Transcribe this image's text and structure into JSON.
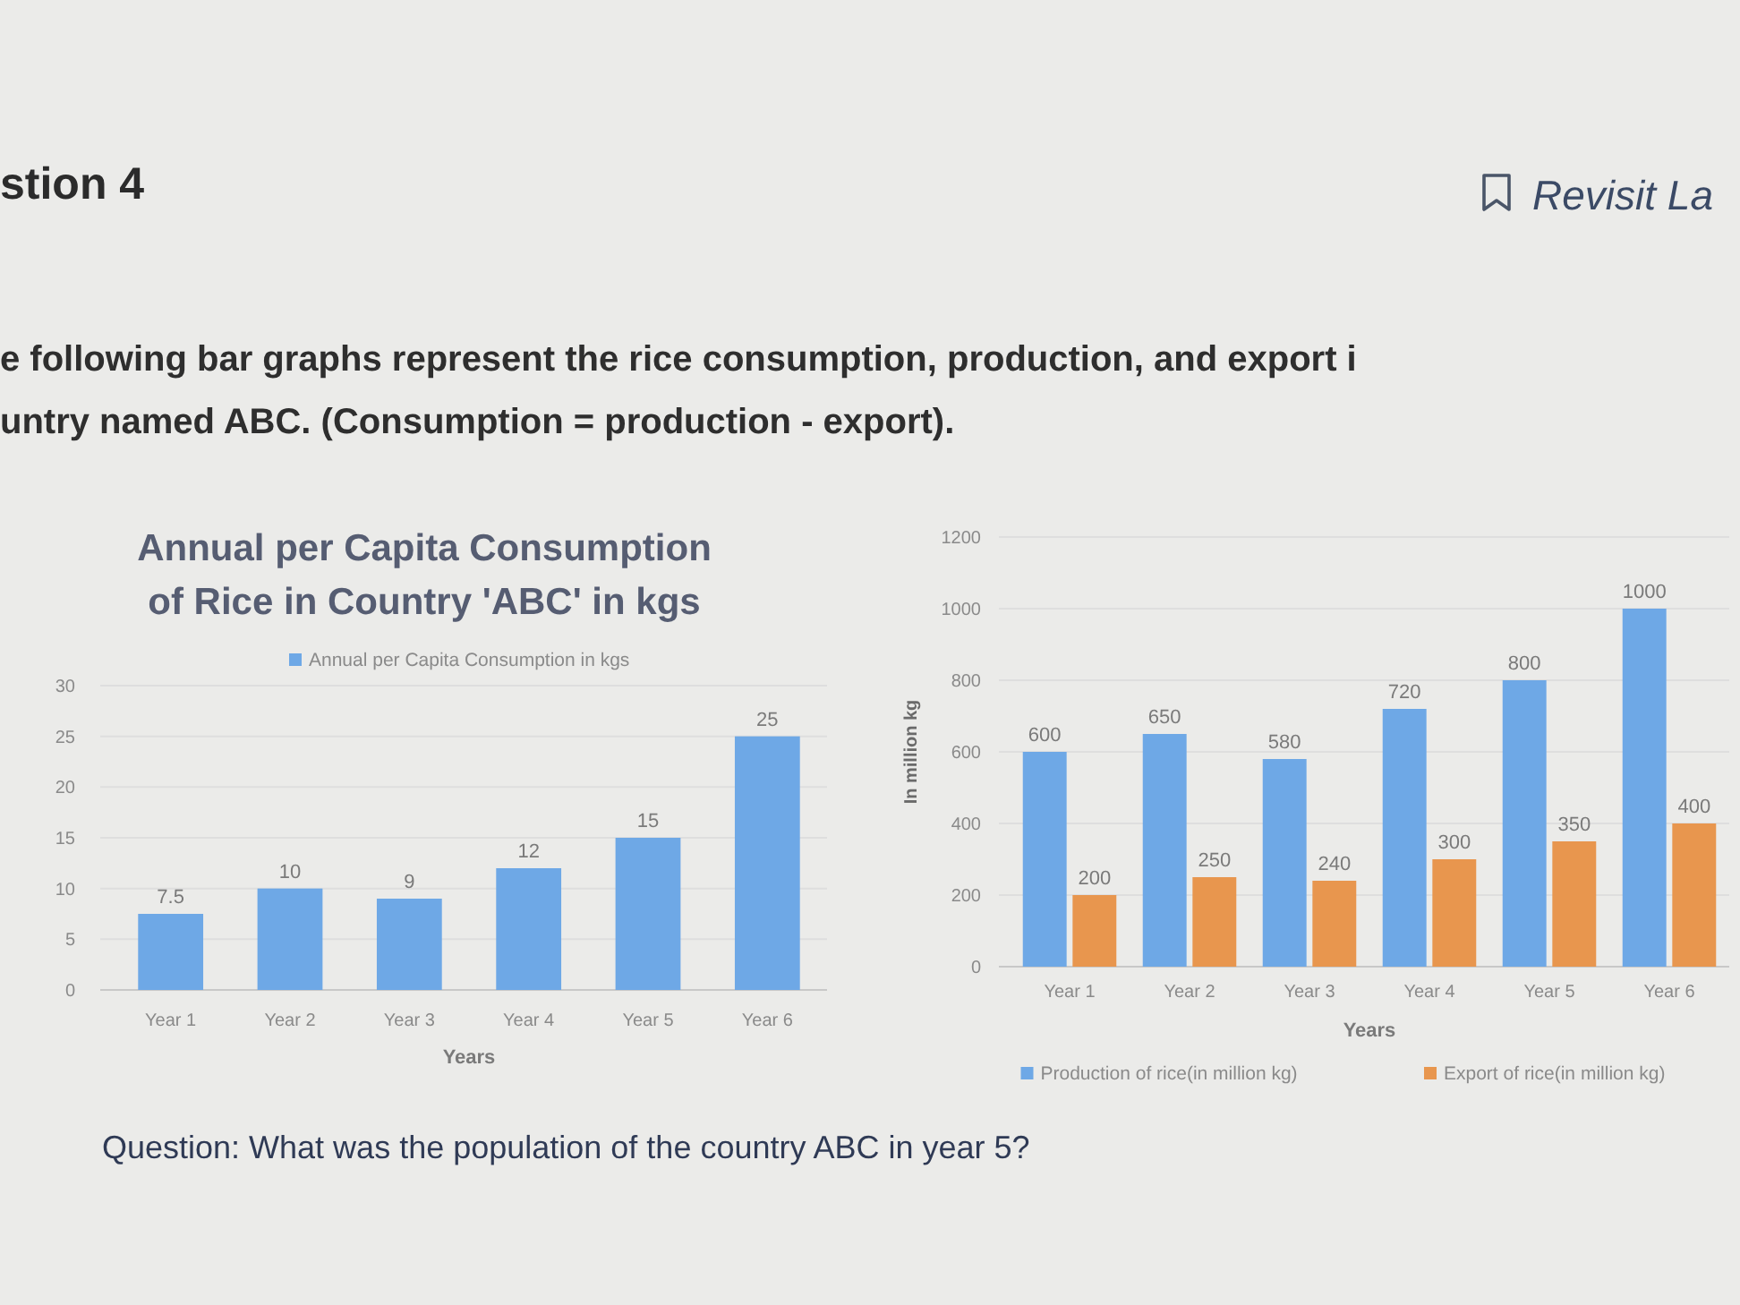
{
  "chart_data": [
    {
      "type": "bar",
      "title": "Annual per Capita Consumption of Rice in Country 'ABC' in kgs",
      "categories": [
        "Year 1",
        "Year 2",
        "Year 3",
        "Year 4",
        "Year 5",
        "Year 6"
      ],
      "series": [
        {
          "name": "Annual per Capita Consumption in kgs",
          "color": "#6ea8e6",
          "values": [
            7.5,
            10,
            9,
            12,
            15,
            25
          ]
        }
      ],
      "xlabel": "Years",
      "ylim": [
        0,
        30
      ],
      "yticks": [
        0,
        5,
        10,
        15,
        20,
        25,
        30
      ],
      "grid": "y",
      "legend": "top",
      "data_labels": true,
      "annotations": [
        "stion 4",
        "Revisit La",
        "e following bar graphs represent the rice consumption, production, and export i",
        "untry named ABC. (Consumption = production - export).",
        "Question: What was the population of the country ABC in year 5?"
      ]
    },
    {
      "type": "bar",
      "categories": [
        "Year 1",
        "Year 2",
        "Year 3",
        "Year 4",
        "Year 5",
        "Year 6"
      ],
      "series": [
        {
          "name": "Production of rice(in million kg)",
          "color": "#6ea8e6",
          "values": [
            600,
            650,
            580,
            720,
            800,
            1000
          ]
        },
        {
          "name": "Export of rice(in million kg)",
          "color": "#e8964e",
          "values": [
            200,
            250,
            240,
            300,
            350,
            400
          ]
        }
      ],
      "xlabel": "Years",
      "ylabel": "In million kg",
      "ylim": [
        0,
        1200
      ],
      "yticks": [
        0,
        200,
        400,
        600,
        800,
        1000,
        1200
      ],
      "grid": "y",
      "legend": "bottom",
      "data_labels": true
    }
  ]
}
